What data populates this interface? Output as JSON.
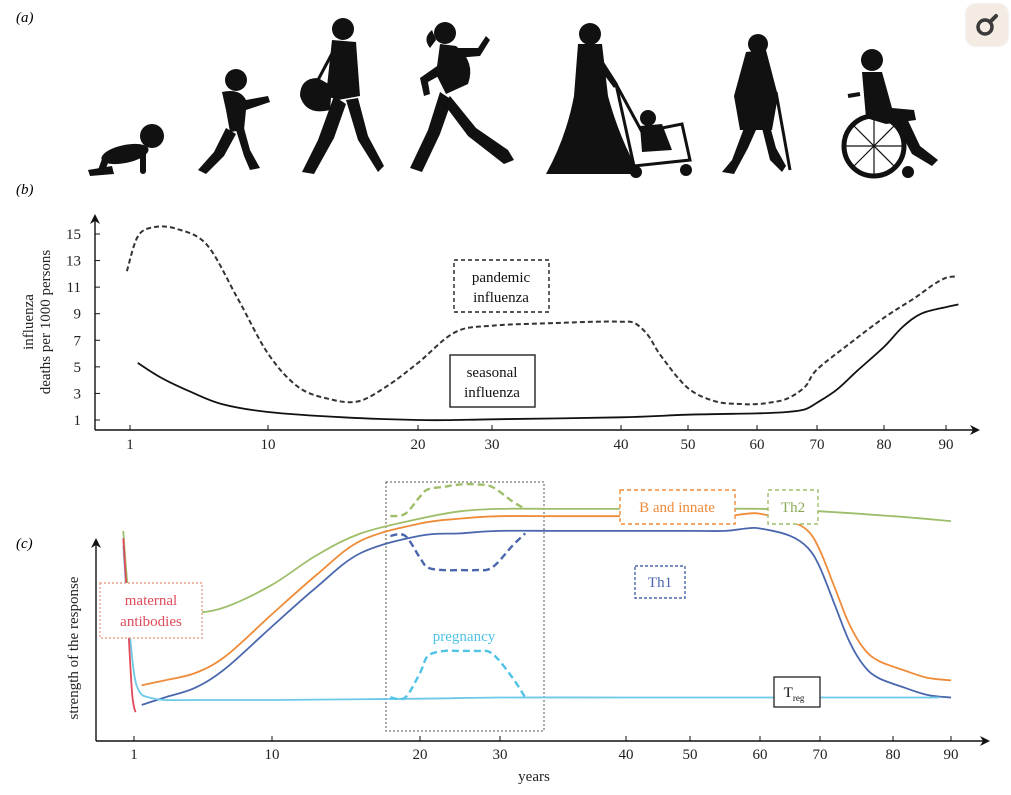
{
  "panels": {
    "a": "(a)",
    "b": "(b)",
    "c": "(c)"
  },
  "silhouettes": [
    "baby-crawling",
    "toddler-walking",
    "woman-with-handbag",
    "pregnant-woman-running",
    "woman-with-stroller",
    "elderly-person-with-cane",
    "person-in-wheelchair"
  ],
  "tool_icon": "magnifier-icon",
  "colors": {
    "pandemic": "#333333",
    "seasonal": "#111111",
    "B_innate": "#ef8c3a",
    "Th2": "#9fbe6a",
    "Th1": "#4a67ae",
    "Treg": "#6cc9e8",
    "maternal": "#e04b5b",
    "pregnancy": "#4fc3e6",
    "pregnancy_box": "#555555"
  },
  "chart_data": [
    {
      "id": "b",
      "type": "line",
      "ylabel": [
        "influenza",
        "deaths per 1000 persons"
      ],
      "xlabel": "",
      "x_ticks": [
        1,
        10,
        20,
        30,
        40,
        50,
        60,
        70,
        80,
        90
      ],
      "y_ticks": [
        1,
        3,
        5,
        7,
        9,
        11,
        13,
        15
      ],
      "xlim": [
        0,
        92
      ],
      "ylim": [
        0,
        16.5
      ],
      "series": [
        {
          "key": "pandemic",
          "name": "pandemic influenza",
          "label_lines": [
            "pandemic",
            "influenza"
          ],
          "style": "dashed",
          "x": [
            0.8,
            1.5,
            2.5,
            4,
            6,
            8,
            10,
            12,
            14,
            16,
            18,
            20,
            25,
            30,
            35,
            38,
            40,
            42,
            44,
            46,
            50,
            54,
            58,
            60,
            62,
            65,
            68,
            70,
            75,
            80,
            85,
            88,
            90,
            91.5
          ],
          "y": [
            12.2,
            14.8,
            15.5,
            15.4,
            14.2,
            10.2,
            6.0,
            3.5,
            2.6,
            2.4,
            3.6,
            5.3,
            7.6,
            8.1,
            8.3,
            8.4,
            8.4,
            8.3,
            7.4,
            5.8,
            3.4,
            2.4,
            2.2,
            2.2,
            2.3,
            2.6,
            3.5,
            4.8,
            6.8,
            8.7,
            10.2,
            11.2,
            11.7,
            11.8
          ]
        },
        {
          "key": "seasonal",
          "name": "seasonal influenza",
          "label_lines": [
            "seasonal",
            "influenza"
          ],
          "style": "solid",
          "x": [
            1.5,
            3,
            5,
            7,
            10,
            15,
            20,
            25,
            30,
            40,
            50,
            60,
            65,
            68,
            70,
            73,
            76,
            80,
            83,
            86,
            90,
            92
          ],
          "y": [
            5.3,
            4.2,
            3.1,
            2.2,
            1.6,
            1.2,
            1.0,
            1.0,
            1.05,
            1.2,
            1.4,
            1.5,
            1.6,
            1.8,
            2.3,
            3.3,
            4.7,
            6.5,
            8.0,
            9.0,
            9.5,
            9.7
          ]
        }
      ]
    },
    {
      "id": "c",
      "type": "line",
      "ylabel": "strength of the response",
      "xlabel": "years",
      "x_ticks": [
        1,
        10,
        20,
        30,
        40,
        50,
        60,
        70,
        80,
        90
      ],
      "xlim": [
        0,
        92
      ],
      "ylim": [
        0,
        1.0
      ],
      "highlight_range": [
        17,
        33
      ],
      "series": [
        {
          "key": "Th2",
          "name": "Th2",
          "label": "Th2",
          "style": "solid",
          "x": [
            0.3,
            0.6,
            1,
            2,
            3,
            5,
            7,
            10,
            13,
            16,
            20,
            25,
            30,
            35,
            40,
            50,
            60,
            70,
            80,
            90
          ],
          "y": [
            0.78,
            0.55,
            0.47,
            0.45,
            0.44,
            0.445,
            0.47,
            0.56,
            0.68,
            0.77,
            0.83,
            0.86,
            0.87,
            0.87,
            0.87,
            0.87,
            0.87,
            0.86,
            0.84,
            0.82
          ]
        },
        {
          "key": "B_innate",
          "name": "B and innate",
          "label": "B and innate",
          "style": "solid",
          "x": [
            1.5,
            3,
            5,
            7,
            10,
            13,
            16,
            20,
            25,
            30,
            35,
            40,
            50,
            55,
            58,
            60,
            65,
            68,
            70,
            72,
            74,
            76,
            78,
            82,
            86,
            90
          ],
          "y": [
            0.15,
            0.17,
            0.2,
            0.27,
            0.44,
            0.6,
            0.74,
            0.81,
            0.83,
            0.84,
            0.84,
            0.84,
            0.84,
            0.84,
            0.85,
            0.85,
            0.82,
            0.78,
            0.7,
            0.55,
            0.4,
            0.3,
            0.25,
            0.21,
            0.18,
            0.17
          ]
        },
        {
          "key": "Th1",
          "name": "Th1",
          "label": "Th1",
          "style": "solid",
          "x": [
            1.5,
            3,
            5,
            7,
            10,
            13,
            16,
            20,
            25,
            30,
            35,
            40,
            50,
            55,
            58,
            60,
            65,
            68,
            70,
            72,
            74,
            76,
            78,
            82,
            86,
            90
          ],
          "y": [
            0.07,
            0.1,
            0.14,
            0.22,
            0.39,
            0.55,
            0.69,
            0.76,
            0.77,
            0.78,
            0.78,
            0.78,
            0.78,
            0.78,
            0.79,
            0.79,
            0.76,
            0.71,
            0.63,
            0.48,
            0.33,
            0.23,
            0.18,
            0.14,
            0.11,
            0.1
          ]
        },
        {
          "key": "Treg",
          "name": "Treg",
          "label_main": "T",
          "label_sub": "reg",
          "style": "solid",
          "x": [
            0.3,
            0.6,
            1,
            1.4,
            2,
            3,
            5,
            10,
            20,
            30,
            40,
            50,
            60,
            70,
            80,
            88
          ],
          "y": [
            0.72,
            0.45,
            0.2,
            0.12,
            0.1,
            0.09,
            0.09,
            0.09,
            0.095,
            0.1,
            0.1,
            0.1,
            0.1,
            0.1,
            0.1,
            0.1
          ]
        },
        {
          "key": "maternal",
          "name": "maternal antibodies",
          "label_lines": [
            "maternal",
            "antibodies"
          ],
          "style": "solid",
          "x": [
            0.3,
            0.5,
            0.7,
            0.9,
            1.1
          ],
          "y": [
            0.75,
            0.55,
            0.3,
            0.1,
            0.04
          ]
        },
        {
          "key": "pregnancy",
          "name": "pregnancy",
          "label": "pregnancy",
          "style": "dashed",
          "x": [
            18,
            19,
            20,
            21,
            23,
            25,
            27,
            29,
            31,
            32
          ],
          "y": [
            0.1,
            0.1,
            0.2,
            0.27,
            0.29,
            0.29,
            0.29,
            0.28,
            0.18,
            0.1
          ]
        },
        {
          "key": "Th2_preg",
          "style": "dashed",
          "ref": "Th2",
          "x": [
            18,
            19,
            20,
            21,
            23,
            25,
            27,
            29,
            31,
            32
          ],
          "y": [
            0.84,
            0.85,
            0.92,
            0.95,
            0.96,
            0.97,
            0.97,
            0.96,
            0.9,
            0.87
          ]
        },
        {
          "key": "Th1_preg",
          "style": "dashed",
          "ref": "Th1",
          "x": [
            18,
            19,
            20,
            21,
            23,
            25,
            27,
            29,
            31,
            32
          ],
          "y": [
            0.76,
            0.76,
            0.67,
            0.63,
            0.62,
            0.62,
            0.62,
            0.63,
            0.72,
            0.77
          ]
        }
      ]
    }
  ]
}
